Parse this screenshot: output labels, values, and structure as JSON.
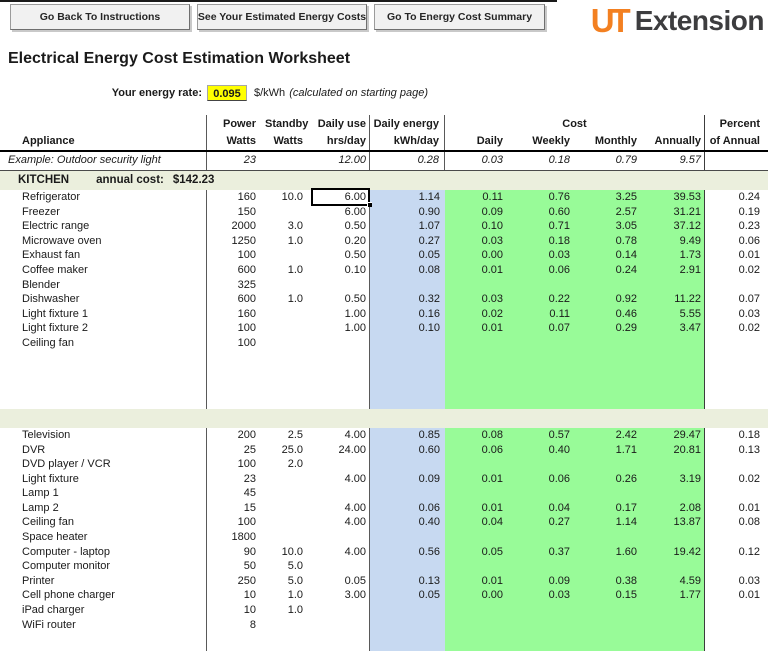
{
  "toolbar": {
    "buttons": [
      {
        "label": "Go Back To Instructions"
      },
      {
        "label": "See Your Estimated Energy Costs"
      },
      {
        "label": "Go To Energy Cost Summary"
      }
    ]
  },
  "logo": {
    "mark": "UT",
    "word": "Extension"
  },
  "page_title": "Electrical Energy Cost Estimation Worksheet",
  "energy_rate": {
    "label": "Your energy rate:",
    "value": "0.095",
    "unit": "$/kWh",
    "note": "(calculated on starting page)"
  },
  "colors": {
    "brand_orange": "#f38021",
    "daily_energy_column": "#c7d9f1",
    "cost_region": "#98fb98",
    "section_band": "#ebefdd",
    "rate_highlight": "#ffff00"
  },
  "table": {
    "header": {
      "group_cost": "Cost",
      "row1": {
        "appliance": "",
        "power": "Power",
        "standby": "Standby",
        "daily_use": "Daily use",
        "daily_energy": "Daily energy",
        "percent": "Percent"
      },
      "row2": {
        "appliance": "Appliance",
        "power": "Watts",
        "standby": "Watts",
        "daily_use": "hrs/day",
        "daily_energy": "kWh/day",
        "daily": "Daily",
        "weekly": "Weekly",
        "monthly": "Monthly",
        "annually": "Annually",
        "percent": "of Annual"
      }
    },
    "example_row": {
      "cells": [
        "Example: Outdoor security light",
        "23",
        "",
        "12.00",
        "0.28",
        "0.03",
        "0.18",
        "0.79",
        "9.57",
        ""
      ],
      "edge_text": "U"
    },
    "selected_cell": {
      "section": 0,
      "row": 0,
      "col": 3,
      "value": "6.00"
    },
    "sections": [
      {
        "name": "KITCHEN",
        "annual_label": "annual cost:",
        "annual_value": "$142.23",
        "trailing_empty_rows": 4,
        "rows": [
          [
            "Refrigerator",
            "160",
            "10.0",
            "6.00",
            "1.14",
            "0.11",
            "0.76",
            "3.25",
            "39.53",
            "0.24"
          ],
          [
            "Freezer",
            "150",
            "",
            "6.00",
            "0.90",
            "0.09",
            "0.60",
            "2.57",
            "31.21",
            "0.19"
          ],
          [
            "Electric range",
            "2000",
            "3.0",
            "0.50",
            "1.07",
            "0.10",
            "0.71",
            "3.05",
            "37.12",
            "0.23"
          ],
          [
            "Microwave oven",
            "1250",
            "1.0",
            "0.20",
            "0.27",
            "0.03",
            "0.18",
            "0.78",
            "9.49",
            "0.06"
          ],
          [
            "Exhaust fan",
            "100",
            "",
            "0.50",
            "0.05",
            "0.00",
            "0.03",
            "0.14",
            "1.73",
            "0.01"
          ],
          [
            "Coffee maker",
            "600",
            "1.0",
            "0.10",
            "0.08",
            "0.01",
            "0.06",
            "0.24",
            "2.91",
            "0.02"
          ],
          [
            "Blender",
            "325",
            "",
            "",
            "",
            "",
            "",
            "",
            "",
            ""
          ],
          [
            "Dishwasher",
            "600",
            "1.0",
            "0.50",
            "0.32",
            "0.03",
            "0.22",
            "0.92",
            "11.22",
            "0.07"
          ],
          [
            "Light fixture 1",
            "160",
            "",
            "1.00",
            "0.16",
            "0.02",
            "0.11",
            "0.46",
            "5.55",
            "0.03"
          ],
          [
            "Light fixture 2",
            "100",
            "",
            "1.00",
            "0.10",
            "0.01",
            "0.07",
            "0.29",
            "3.47",
            "0.02"
          ],
          [
            "Ceiling fan",
            "100",
            "",
            "",
            "",
            "",
            "",
            "",
            "",
            ""
          ]
        ]
      },
      {
        "name": "",
        "annual_label": "",
        "annual_value": "",
        "trailing_empty_rows": 2,
        "rows": [
          [
            "Television",
            "200",
            "2.5",
            "4.00",
            "0.85",
            "0.08",
            "0.57",
            "2.42",
            "29.47",
            "0.18"
          ],
          [
            "DVR",
            "25",
            "25.0",
            "24.00",
            "0.60",
            "0.06",
            "0.40",
            "1.71",
            "20.81",
            "0.13"
          ],
          [
            "DVD player / VCR",
            "100",
            "2.0",
            "",
            "",
            "",
            "",
            "",
            "",
            ""
          ],
          [
            "Light fixture",
            "23",
            "",
            "4.00",
            "0.09",
            "0.01",
            "0.06",
            "0.26",
            "3.19",
            "0.02"
          ],
          [
            "Lamp 1",
            "45",
            "",
            "",
            "",
            "",
            "",
            "",
            "",
            ""
          ],
          [
            "Lamp 2",
            "15",
            "",
            "4.00",
            "0.06",
            "0.01",
            "0.04",
            "0.17",
            "2.08",
            "0.01"
          ],
          [
            "Ceiling fan",
            "100",
            "",
            "4.00",
            "0.40",
            "0.04",
            "0.27",
            "1.14",
            "13.87",
            "0.08"
          ],
          [
            "Space heater",
            "1800",
            "",
            "",
            "",
            "",
            "",
            "",
            "",
            ""
          ],
          [
            "Computer - laptop",
            "90",
            "10.0",
            "4.00",
            "0.56",
            "0.05",
            "0.37",
            "1.60",
            "19.42",
            "0.12"
          ],
          [
            "Computer monitor",
            "50",
            "5.0",
            "",
            "",
            "",
            "",
            "",
            "",
            ""
          ],
          [
            "Printer",
            "250",
            "5.0",
            "0.05",
            "0.13",
            "0.01",
            "0.09",
            "0.38",
            "4.59",
            "0.03"
          ],
          [
            "Cell phone charger",
            "10",
            "1.0",
            "3.00",
            "0.05",
            "0.00",
            "0.03",
            "0.15",
            "1.77",
            "0.01"
          ],
          [
            "iPad charger",
            "10",
            "1.0",
            "",
            "",
            "",
            "",
            "",
            "",
            ""
          ],
          [
            "WiFi router",
            "8",
            "",
            "",
            "",
            "",
            "",
            "",
            "",
            ""
          ]
        ]
      }
    ]
  }
}
